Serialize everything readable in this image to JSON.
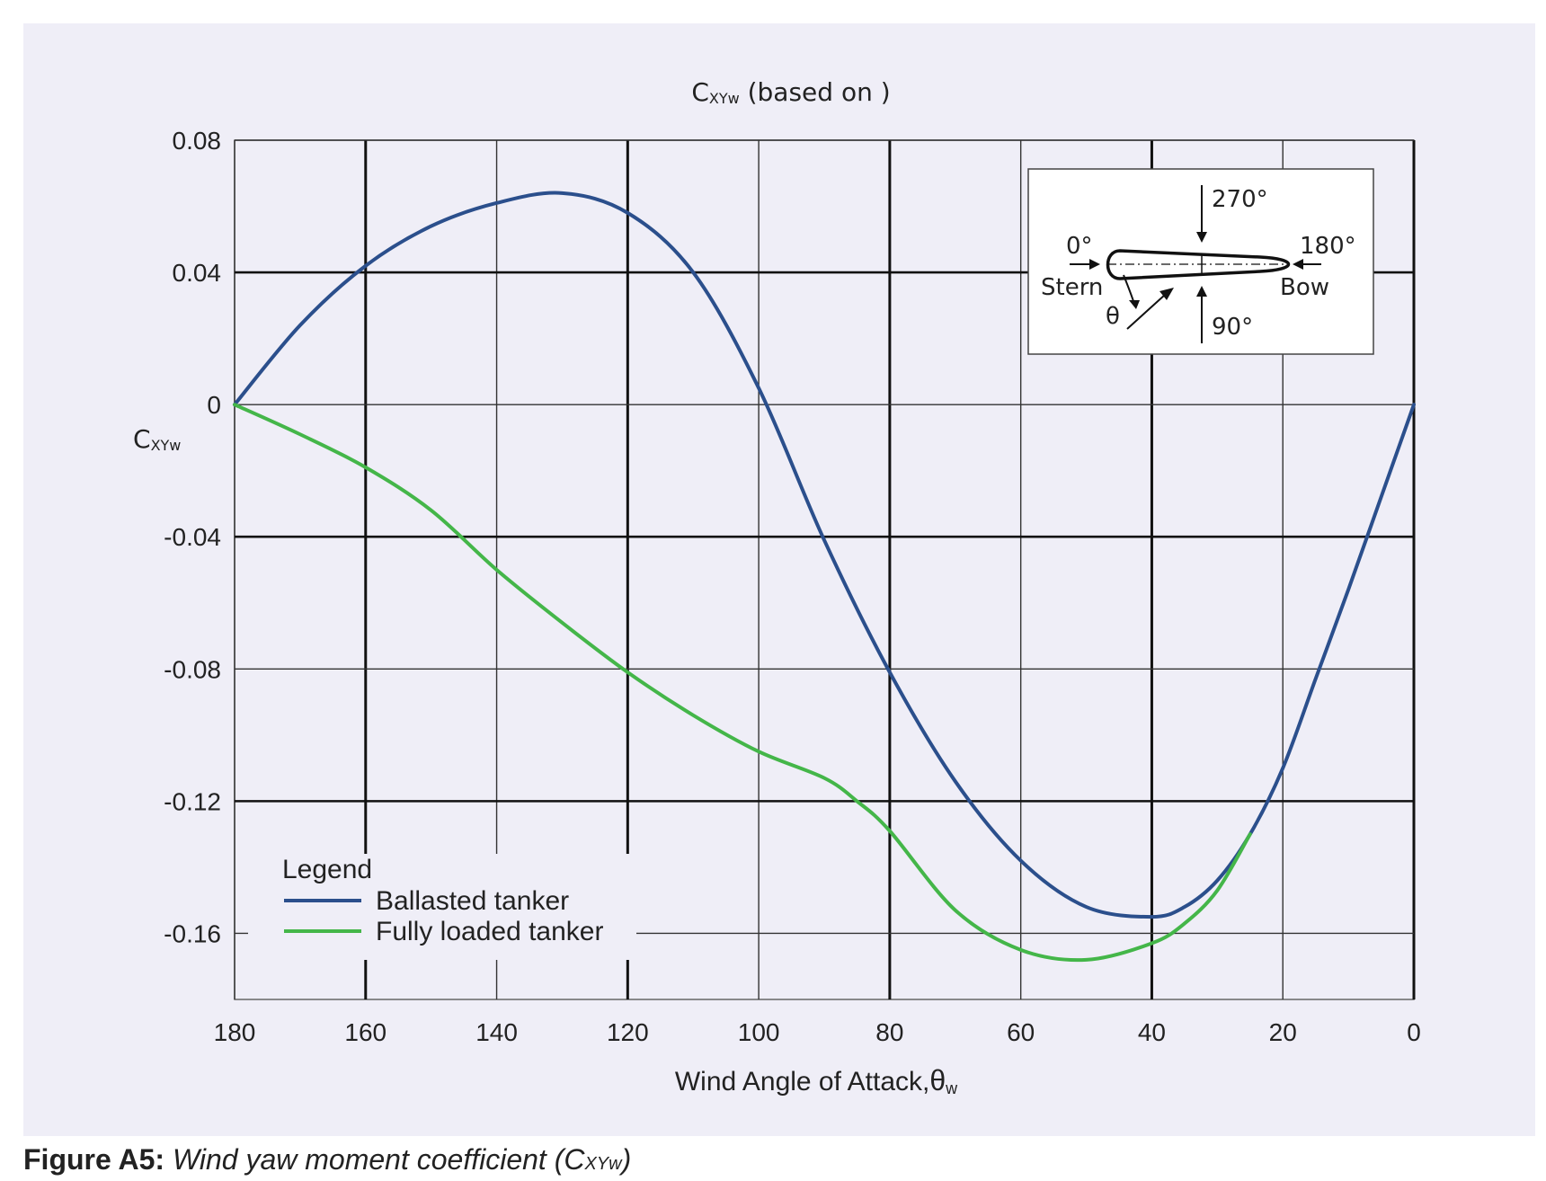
{
  "chart_data": {
    "type": "line",
    "title": "(based on",
    "title_symbol": "C",
    "title_symbol_sub": "XYw",
    "title_suffix": ")",
    "ylabel": "C",
    "ylabel_sub": "XYw",
    "xlabel": "Wind Angle of Attack,",
    "xlabel_symbol": "θ",
    "xlabel_sub": "w",
    "xlim": [
      180,
      0
    ],
    "ylim": [
      -0.18,
      0.08
    ],
    "x_ticks": [
      "180",
      "160",
      "140",
      "120",
      "100",
      "80",
      "60",
      "40",
      "20",
      "0"
    ],
    "y_ticks": [
      "0.08",
      "0.04",
      "0",
      "-0.04",
      "-0.08",
      "-0.12",
      "-0.16"
    ],
    "grid": true,
    "legend": {
      "title": "Legend",
      "position": "bottom-left",
      "entries": [
        "Ballasted tanker",
        "Fully loaded tanker"
      ]
    },
    "series": [
      {
        "name": "Ballasted tanker",
        "color": "#2b4f8c",
        "x": [
          180,
          170,
          160,
          150,
          140,
          130,
          120,
          110,
          100,
          90,
          80,
          70,
          60,
          50,
          40,
          35,
          30,
          25,
          20,
          15,
          10,
          5,
          0
        ],
        "y": [
          0,
          0.024,
          0.042,
          0.054,
          0.061,
          0.064,
          0.058,
          0.04,
          0.005,
          -0.041,
          -0.081,
          -0.114,
          -0.138,
          -0.152,
          -0.155,
          -0.152,
          -0.144,
          -0.13,
          -0.11,
          -0.083,
          -0.056,
          -0.028,
          0
        ]
      },
      {
        "name": "Fully loaded tanker",
        "color": "#44b649",
        "x": [
          180,
          170,
          160,
          150,
          140,
          130,
          120,
          110,
          100,
          90,
          85,
          80,
          70,
          60,
          50,
          40,
          35,
          30,
          25
        ],
        "y": [
          0,
          -0.009,
          -0.019,
          -0.032,
          -0.05,
          -0.066,
          -0.081,
          -0.094,
          -0.105,
          -0.113,
          -0.12,
          -0.129,
          -0.153,
          -0.165,
          -0.168,
          -0.163,
          -0.157,
          -0.147,
          -0.13
        ]
      }
    ],
    "inset": {
      "labels": {
        "a270": "270°",
        "a0": "0°",
        "a180": "180°",
        "a90": "90°",
        "stern": "Stern",
        "bow": "Bow",
        "theta": "θ"
      }
    }
  },
  "caption": {
    "label": "Figure A5:",
    "text": "Wind yaw moment coefficient (C",
    "sub": "XYw",
    "end": ")"
  }
}
